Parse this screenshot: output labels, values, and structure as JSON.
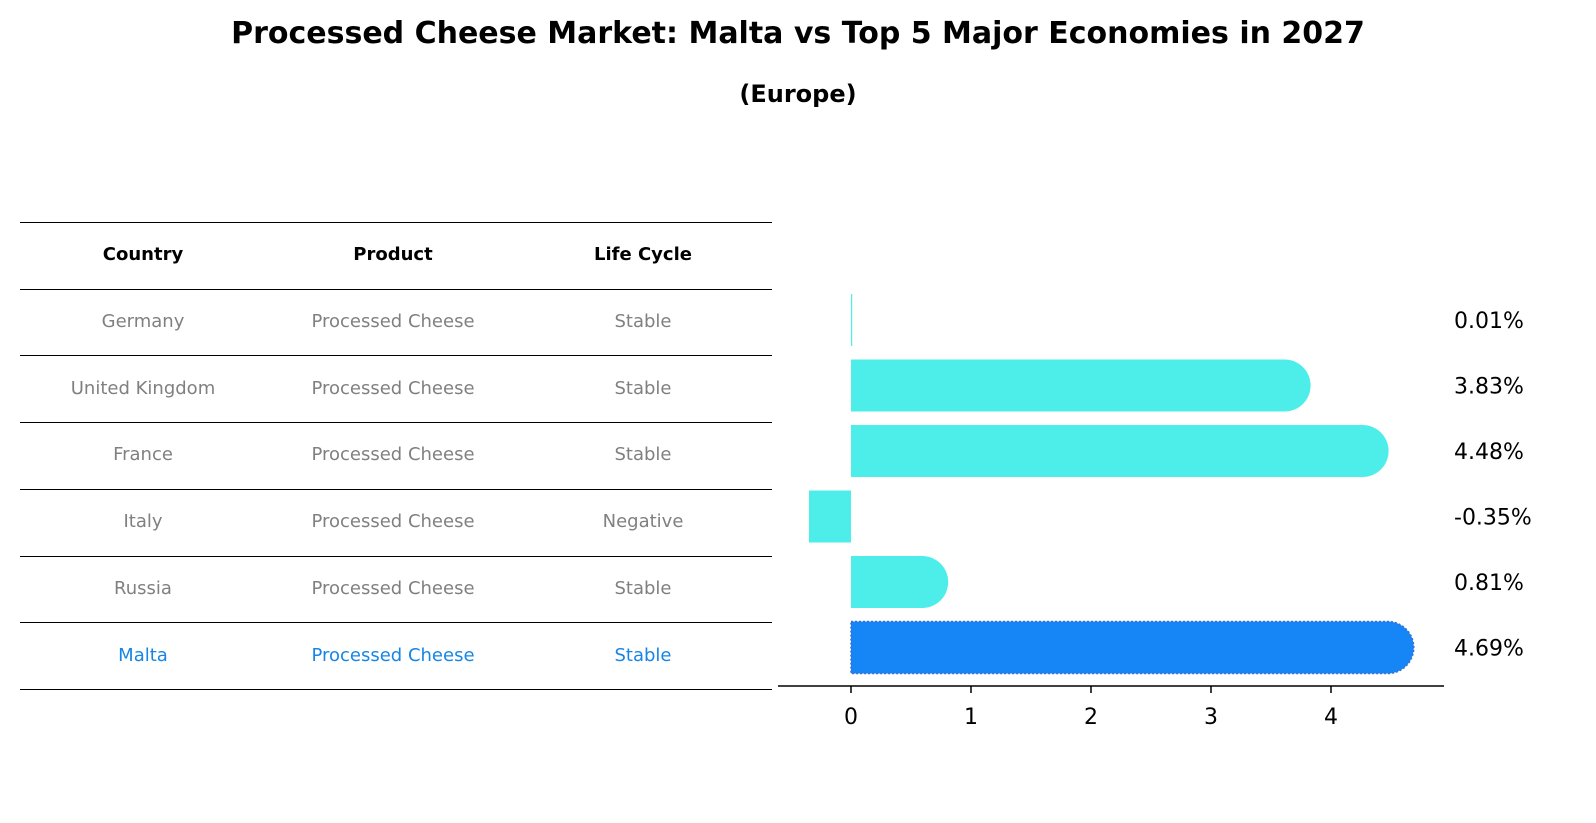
{
  "title": "Processed Cheese Market: Malta vs Top 5 Major Economies in 2027",
  "subtitle": "(Europe)",
  "table": {
    "columns": [
      "Country",
      "Product",
      "Life Cycle"
    ],
    "rows": [
      {
        "country": "Germany",
        "product": "Processed Cheese",
        "life_cycle": "Stable"
      },
      {
        "country": "United Kingdom",
        "product": "Processed Cheese",
        "life_cycle": "Stable"
      },
      {
        "country": "France",
        "product": "Processed Cheese",
        "life_cycle": "Stable"
      },
      {
        "country": "Italy",
        "product": "Processed Cheese",
        "life_cycle": "Negative"
      },
      {
        "country": "Russia",
        "product": "Processed Cheese",
        "life_cycle": "Stable"
      },
      {
        "country": "Malta",
        "product": "Processed Cheese",
        "life_cycle": "Stable"
      }
    ],
    "highlight_row": "Malta"
  },
  "chart_data": {
    "type": "bar",
    "orientation": "horizontal",
    "categories": [
      "Germany",
      "United Kingdom",
      "France",
      "Italy",
      "Russia",
      "Malta"
    ],
    "values": [
      0.01,
      3.83,
      4.48,
      -0.35,
      0.81,
      4.69
    ],
    "value_labels": [
      "0.01%",
      "3.83%",
      "4.48%",
      "-0.35%",
      "0.81%",
      "4.69%"
    ],
    "xlim": [
      -0.6,
      4.9
    ],
    "xticks": [
      0,
      1,
      2,
      3,
      4
    ],
    "grid": false,
    "colors": {
      "default": "#4deeea",
      "highlight": "#1685f5"
    }
  }
}
